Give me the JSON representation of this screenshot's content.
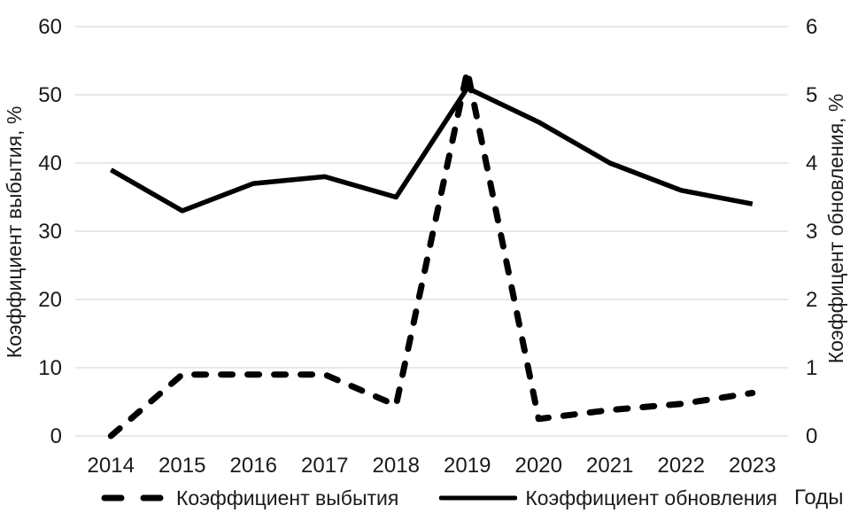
{
  "chart_data": {
    "type": "line",
    "title": "",
    "x_axis": {
      "label": "Годы",
      "categories": [
        "2014",
        "2015",
        "2016",
        "2017",
        "2018",
        "2019",
        "2020",
        "2021",
        "2022",
        "2023"
      ]
    },
    "y_axis_left": {
      "label": "Коэффициент выбытия, %",
      "min": 0,
      "max": 60,
      "step": 10,
      "ticks": [
        0,
        10,
        20,
        30,
        40,
        50,
        60
      ]
    },
    "y_axis_right": {
      "label": "Коэффицент обновления, %",
      "min": 0,
      "max": 6,
      "step": 1,
      "ticks": [
        0,
        1,
        2,
        3,
        4,
        5,
        6
      ]
    },
    "series": [
      {
        "name": "Коэффициент выбытия",
        "axis": "left",
        "line_style": "dashed",
        "color": "#000000",
        "values": [
          0,
          9,
          9,
          9,
          4.5,
          53.5,
          2.5,
          3.8,
          4.7,
          6.3
        ]
      },
      {
        "name": "Коэффициент обновления",
        "axis": "right",
        "line_style": "solid",
        "color": "#000000",
        "values": [
          3.9,
          3.3,
          3.7,
          3.8,
          3.5,
          5.1,
          4.6,
          4.0,
          3.6,
          3.4
        ]
      }
    ],
    "grid": {
      "horizontal": true,
      "vertical": false,
      "color": "#d9d9d9"
    },
    "legend_position": "bottom",
    "background": "#ffffff"
  }
}
